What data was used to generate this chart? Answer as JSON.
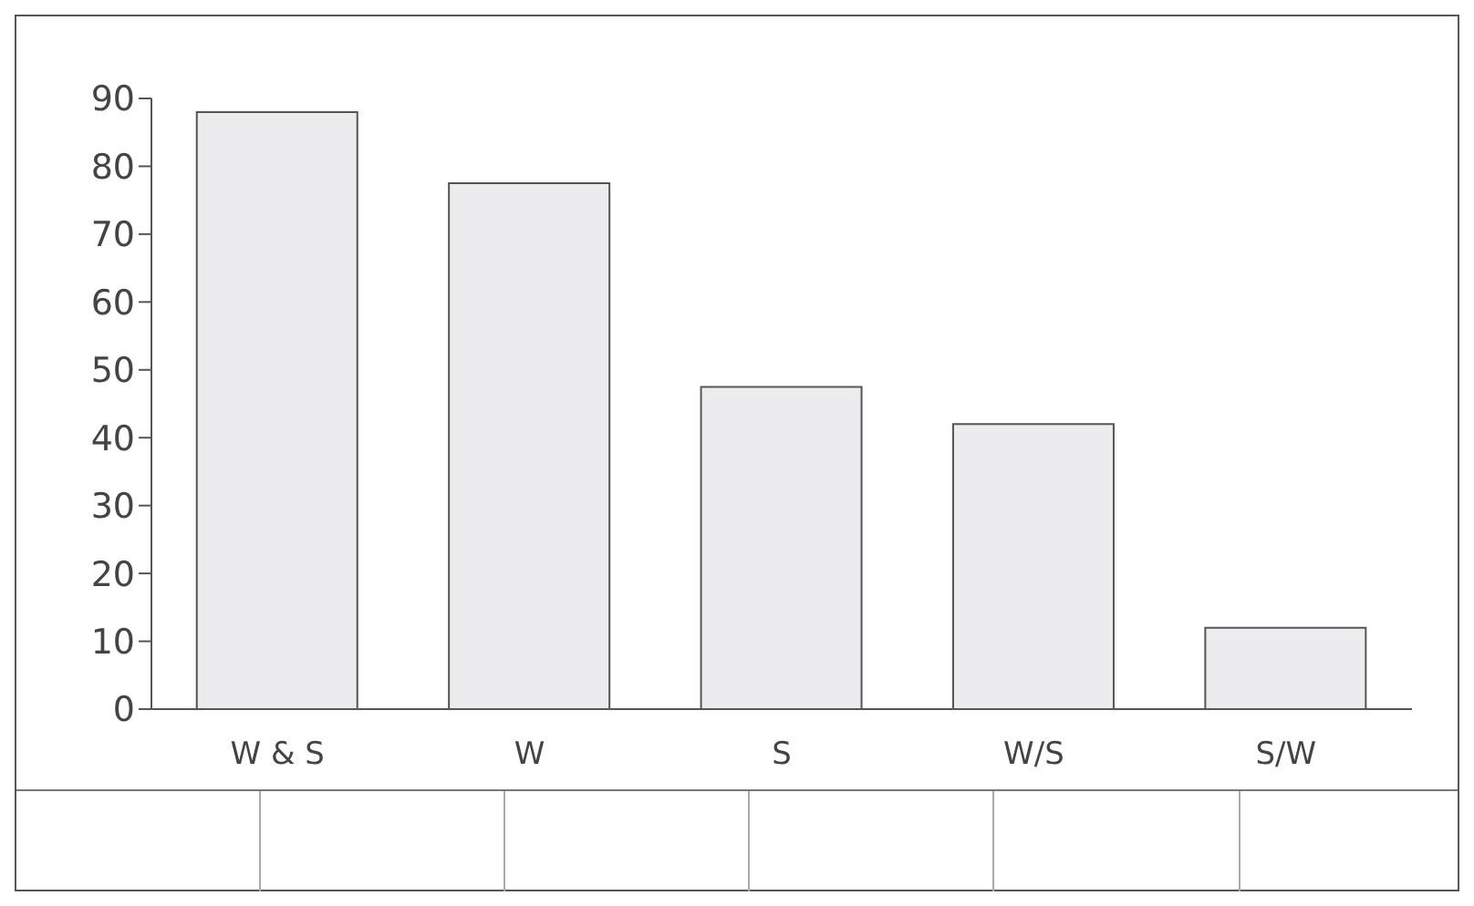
{
  "chart_data": {
    "type": "bar",
    "categories": [
      "W & S",
      "W",
      "S",
      "W/S",
      "S/W"
    ],
    "values": [
      88,
      77.5,
      47.5,
      42,
      12
    ],
    "color": "#ececef",
    "ylim": [
      0,
      90
    ],
    "yticks": [
      0,
      10,
      20,
      30,
      40,
      50,
      60,
      70,
      80,
      90
    ],
    "grid": false,
    "legend": false
  }
}
